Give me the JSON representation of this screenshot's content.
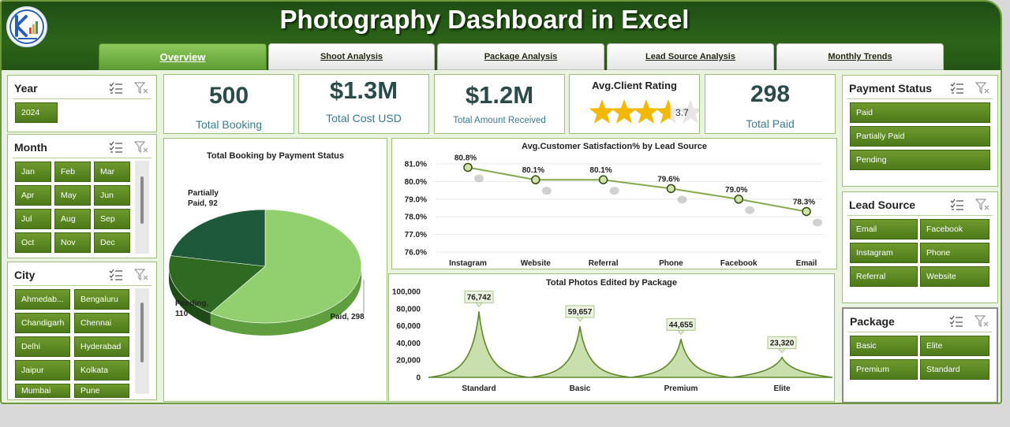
{
  "app": {
    "title": "Photography Dashboard in Excel"
  },
  "tabs": [
    {
      "label": "Overview",
      "active": true
    },
    {
      "label": "Shoot Analysis"
    },
    {
      "label": "Package Analysis"
    },
    {
      "label": "Lead Source Analysis"
    },
    {
      "label": "Monthly Trends"
    }
  ],
  "slicers": {
    "year": {
      "title": "Year",
      "items": [
        "2024"
      ]
    },
    "month": {
      "title": "Month",
      "items": [
        "Jan",
        "Feb",
        "Mar",
        "Apr",
        "May",
        "Jun",
        "Jul",
        "Aug",
        "Sep",
        "Oct",
        "Nov",
        "Dec"
      ]
    },
    "city": {
      "title": "City",
      "items": [
        "Ahmedab...",
        "Bengaluru",
        "Chandigarh",
        "Chennai",
        "Delhi",
        "Hyderabad",
        "Jaipur",
        "Kolkata",
        "Mumbai",
        "Pune"
      ]
    },
    "payment_status": {
      "title": "Payment Status",
      "items": [
        "Paid",
        "Partially Paid",
        "Pending"
      ]
    },
    "lead_source": {
      "title": "Lead Source",
      "items": [
        "Email",
        "Facebook",
        "Instagram",
        "Phone",
        "Referral",
        "Website"
      ]
    },
    "package": {
      "title": "Package",
      "items": [
        "Basic",
        "Elite",
        "Premium",
        "Standard"
      ]
    }
  },
  "kpis": {
    "total_booking": {
      "value": "500",
      "label": "Total Booking"
    },
    "total_cost": {
      "value": "$1.3M",
      "label": "Total Cost USD"
    },
    "total_received": {
      "value": "$1.2M",
      "label": "Total Amount Received"
    },
    "rating": {
      "label": "Avg.Client Rating",
      "value": "3.7",
      "rating": 3.7,
      "max": 5
    },
    "total_paid": {
      "value": "298",
      "label": "Total Paid"
    }
  },
  "colors": {
    "header": "#2d6419",
    "accent": "#5f9e36",
    "slicer_button": "#5a8a22",
    "kpi_text": "#2b4a4a",
    "kpi_label": "#3a7a8f",
    "star": "#f5b800"
  },
  "chart_data": [
    {
      "type": "pie",
      "title": "Total Booking by Payment Status",
      "categories": [
        "Paid",
        "Partially Paid",
        "Pending"
      ],
      "values": [
        298,
        92,
        110
      ],
      "labels": [
        "Paid, 298",
        "Partially Paid, 92",
        "Pending, 110"
      ],
      "colors": [
        "#92cf6f",
        "#2e6a22",
        "#1e5a3a"
      ]
    },
    {
      "type": "line",
      "title": "Avg.Customer Satisfaction% by Lead Source",
      "categories": [
        "Instagram",
        "Website",
        "Referral",
        "Phone",
        "Facebook",
        "Email"
      ],
      "values": [
        80.8,
        80.1,
        80.1,
        79.6,
        79.0,
        78.3
      ],
      "value_labels": [
        "80.8%",
        "80.1%",
        "80.1%",
        "79.6%",
        "79.0%",
        "78.3%"
      ],
      "ylim": [
        76.0,
        81.0
      ],
      "yticks": [
        "81.0%",
        "80.0%",
        "79.0%",
        "78.0%",
        "77.0%",
        "76.0%"
      ],
      "grid": true
    },
    {
      "type": "area",
      "title": "Total Photos Edited by Package",
      "categories": [
        "Standard",
        "Basic",
        "Premium",
        "Elite"
      ],
      "values": [
        76742,
        59657,
        44655,
        23320
      ],
      "value_labels": [
        "76,742",
        "59,657",
        "44,655",
        "23,320"
      ],
      "ylim": [
        0,
        100000
      ],
      "yticks": [
        "100,000",
        "80,000",
        "60,000",
        "40,000",
        "20,000",
        "0"
      ]
    }
  ]
}
